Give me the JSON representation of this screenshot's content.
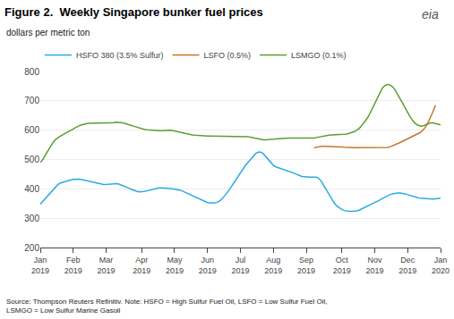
{
  "chart_data": {
    "type": "line",
    "title": "Figure 2.  Weekly Singapore bunker fuel prices",
    "subtitle": "dollars per metric ton",
    "annotations": [
      "Source: Thompson Reuters Refinitiv. Note: HSFO = High Sulfur Fuel Oil, LSFO = Low Sulfur Fuel Oil,\nLSMGO = Low Sulfur Marine Gasoil",
      "eia"
    ],
    "categories": [
      "Jan\n2019",
      null,
      null,
      null,
      null,
      null,
      null,
      null,
      null,
      null,
      null,
      null,
      null,
      "Feb\n2019",
      null,
      null,
      null,
      null,
      null,
      null,
      null,
      null,
      null,
      null,
      null,
      null,
      "Mar\n2019",
      null,
      null,
      null,
      null,
      null,
      null,
      null,
      null,
      null,
      null,
      null,
      null,
      null,
      "Apr\n2019",
      null,
      null,
      null,
      null,
      null,
      null,
      null,
      null,
      null,
      null,
      null,
      null,
      "May\n2019",
      null,
      null,
      null,
      null,
      null,
      null,
      null,
      null,
      null,
      null,
      null,
      null,
      "Jun\n2019",
      null,
      null,
      null,
      null,
      null,
      null,
      null,
      null,
      null,
      null,
      null,
      null,
      "Jul\n2019",
      null,
      null,
      null,
      null,
      null,
      null,
      null,
      null,
      null,
      null,
      null,
      null,
      "Aug\n2019",
      null,
      null,
      null,
      null,
      null,
      null,
      null,
      null,
      null,
      null,
      null,
      null,
      "Sep\n2019",
      null,
      null,
      null,
      null,
      null,
      null,
      null,
      null,
      null,
      null,
      null,
      null,
      null,
      "Oct\n2019",
      null,
      null,
      null,
      null,
      null,
      null,
      null,
      null,
      null,
      null,
      null,
      null,
      "Nov\n2019",
      null,
      null,
      null,
      null,
      null,
      null,
      null,
      null,
      null,
      null,
      null,
      null,
      "Dec\n2019",
      null,
      null,
      null,
      null,
      null,
      null,
      null,
      null,
      null,
      null,
      null,
      null,
      "Jan\n2020"
    ],
    "series": [
      {
        "name": "HSFO 380 (3.5% Sulfur)",
        "color": "#29ABE2",
        "values": [
          348,
          358,
          368,
          378,
          388,
          398,
          408,
          415,
          420,
          423,
          425,
          428,
          430,
          432,
          433,
          433,
          432,
          430,
          428,
          426,
          424,
          422,
          420,
          418,
          416,
          415,
          415,
          416,
          417,
          418,
          418,
          416,
          413,
          410,
          406,
          402,
          398,
          394,
          392,
          390,
          390,
          391,
          393,
          395,
          398,
          400,
          402,
          403,
          403,
          403,
          402,
          401,
          400,
          399,
          398,
          396,
          393,
          389,
          385,
          380,
          376,
          372,
          368,
          364,
          360,
          356,
          353,
          352,
          351,
          352,
          355,
          360,
          368,
          378,
          390,
          402,
          415,
          428,
          440,
          455,
          470,
          480,
          490,
          500,
          510,
          520,
          525,
          525,
          520,
          510,
          498,
          488,
          480,
          475,
          472,
          470,
          468,
          465,
          462,
          458,
          454,
          450,
          446,
          443,
          441,
          440,
          440,
          440,
          440,
          440,
          435,
          425,
          410,
          395,
          380,
          365,
          352,
          342,
          335,
          330,
          326,
          324,
          323,
          323,
          323,
          325,
          328,
          332,
          336,
          340,
          344,
          348,
          352,
          357,
          362,
          367,
          372,
          376,
          380,
          383,
          385,
          386,
          386,
          385,
          383,
          380,
          377,
          374,
          372,
          370,
          368,
          367,
          366,
          366,
          365,
          365,
          366,
          367,
          368
        ]
      },
      {
        "name": "LSFO (0.5%)",
        "color": "#C8762B",
        "values": [
          null,
          null,
          null,
          null,
          null,
          null,
          null,
          null,
          null,
          null,
          null,
          null,
          null,
          null,
          null,
          null,
          null,
          null,
          null,
          null,
          null,
          null,
          null,
          null,
          null,
          null,
          null,
          null,
          null,
          null,
          null,
          null,
          null,
          null,
          null,
          null,
          null,
          null,
          null,
          null,
          null,
          null,
          null,
          null,
          null,
          null,
          null,
          null,
          null,
          null,
          null,
          null,
          null,
          null,
          null,
          null,
          null,
          null,
          null,
          null,
          null,
          null,
          null,
          null,
          null,
          null,
          null,
          null,
          null,
          null,
          null,
          null,
          null,
          null,
          null,
          null,
          null,
          null,
          null,
          null,
          null,
          null,
          null,
          null,
          null,
          null,
          null,
          null,
          null,
          null,
          null,
          null,
          null,
          null,
          null,
          null,
          null,
          null,
          null,
          null,
          null,
          null,
          null,
          null,
          null,
          null,
          null,
          null,
          540,
          542,
          544,
          545,
          545,
          545,
          545,
          545,
          545,
          545,
          544,
          543,
          542,
          541,
          540,
          540,
          540,
          540,
          540,
          540,
          540,
          540,
          540,
          540,
          540,
          540,
          540,
          540,
          540,
          541,
          543,
          546,
          550,
          554,
          558,
          562,
          566,
          570,
          574,
          578,
          582,
          586,
          592,
          600,
          610,
          625,
          643,
          663,
          685,
          null,
          null
        ]
      },
      {
        "name": "LSMGO (0.1%)",
        "color": "#5A9E2F",
        "values": [
          490,
          500,
          515,
          530,
          545,
          558,
          568,
          575,
          580,
          585,
          590,
          595,
          600,
          605,
          610,
          614,
          617,
          620,
          622,
          623,
          624,
          624,
          624,
          624,
          624,
          624,
          624,
          624,
          625,
          626,
          627,
          627,
          626,
          624,
          622,
          619,
          616,
          613,
          610,
          607,
          605,
          603,
          601,
          600,
          599,
          598,
          598,
          598,
          598,
          599,
          600,
          600,
          599,
          597,
          595,
          592,
          590,
          588,
          586,
          585,
          584,
          583,
          582,
          581,
          580,
          580,
          580,
          580,
          580,
          580,
          580,
          580,
          580,
          580,
          580,
          580,
          580,
          580,
          580,
          580,
          580,
          580,
          578,
          576,
          574,
          572,
          570,
          568,
          567,
          567,
          567,
          568,
          569,
          570,
          571,
          572,
          573,
          573,
          573,
          573,
          573,
          572,
          572,
          572,
          572,
          572,
          572,
          572,
          573,
          575,
          577,
          579,
          581,
          582,
          583,
          584,
          584,
          584,
          584,
          585,
          586,
          587,
          589,
          592,
          595,
          600,
          607,
          617,
          628,
          640,
          655,
          672,
          690,
          710,
          728,
          743,
          752,
          756,
          754,
          748,
          738,
          724,
          708,
          692,
          676,
          660,
          645,
          633,
          623,
          617,
          614,
          614,
          617,
          621,
          625,
          625,
          622,
          619,
          618
        ]
      }
    ],
    "ylim": [
      200,
      800
    ],
    "yticks": [
      200,
      300,
      400,
      500,
      600,
      700,
      800
    ],
    "grid": true,
    "legend": "upper left"
  }
}
